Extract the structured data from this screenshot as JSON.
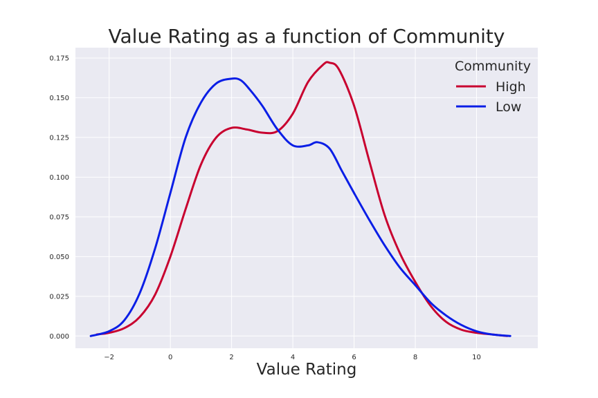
{
  "chart_data": {
    "type": "line",
    "title": "Value Rating as a function of Community",
    "xlabel": "Value Rating",
    "ylabel": "",
    "xlim": [
      -3.1,
      12.0
    ],
    "ylim": [
      -0.0077,
      0.1815
    ],
    "x_ticks": [
      -2,
      0,
      2,
      4,
      6,
      8,
      10
    ],
    "x_tick_labels": [
      "−2",
      "0",
      "2",
      "4",
      "6",
      "8",
      "10"
    ],
    "y_ticks": [
      0.0,
      0.025,
      0.05,
      0.075,
      0.1,
      0.125,
      0.15,
      0.175
    ],
    "y_tick_labels": [
      "0.000",
      "0.025",
      "0.050",
      "0.075",
      "0.100",
      "0.125",
      "0.150",
      "0.175"
    ],
    "grid": true,
    "legend": {
      "title": "Community",
      "placement": "top-right"
    },
    "series": [
      {
        "name": "High",
        "color": "#c8002f",
        "x": [
          -2.4,
          -2.0,
          -1.5,
          -1.0,
          -0.5,
          0.0,
          0.5,
          1.0,
          1.5,
          2.0,
          2.5,
          3.0,
          3.5,
          4.0,
          4.5,
          5.0,
          5.2,
          5.5,
          6.0,
          6.5,
          7.0,
          7.5,
          8.0,
          8.5,
          9.0,
          9.5,
          10.0,
          10.5,
          11.0
        ],
        "y": [
          0.001,
          0.002,
          0.005,
          0.012,
          0.026,
          0.05,
          0.08,
          0.108,
          0.125,
          0.131,
          0.13,
          0.128,
          0.129,
          0.14,
          0.16,
          0.171,
          0.172,
          0.168,
          0.145,
          0.11,
          0.076,
          0.052,
          0.034,
          0.019,
          0.009,
          0.004,
          0.002,
          0.001,
          0.0
        ]
      },
      {
        "name": "Low",
        "color": "#0a1ee6",
        "x": [
          -2.6,
          -2.0,
          -1.5,
          -1.0,
          -0.5,
          0.0,
          0.5,
          1.0,
          1.5,
          2.0,
          2.3,
          2.6,
          3.0,
          3.5,
          4.0,
          4.5,
          4.8,
          5.2,
          5.6,
          6.0,
          6.5,
          7.0,
          7.5,
          8.0,
          8.5,
          9.0,
          9.5,
          10.0,
          10.5,
          11.1
        ],
        "y": [
          0.0,
          0.003,
          0.01,
          0.027,
          0.055,
          0.09,
          0.125,
          0.147,
          0.159,
          0.162,
          0.161,
          0.155,
          0.145,
          0.13,
          0.12,
          0.12,
          0.122,
          0.118,
          0.104,
          0.09,
          0.073,
          0.057,
          0.043,
          0.032,
          0.021,
          0.013,
          0.007,
          0.003,
          0.001,
          0.0
        ]
      }
    ]
  }
}
